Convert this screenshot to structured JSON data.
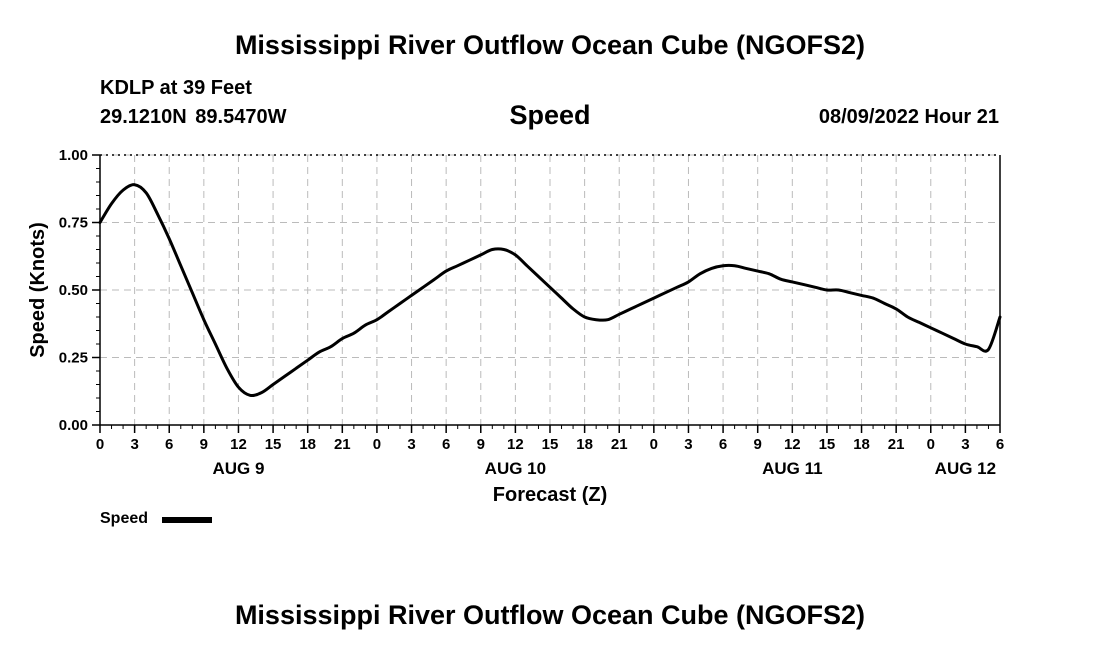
{
  "header": {
    "title": "Mississippi River Outflow Ocean Cube (NGOFS2)",
    "station": "KDLP at 39 Feet",
    "coords": "29.1210N  89.5470W",
    "subtitle": "Speed",
    "datetime": "08/09/2022 Hour 21"
  },
  "footer": {
    "title": "Mississippi River Outflow Ocean Cube (NGOFS2)"
  },
  "legend": {
    "label": "Speed",
    "color": "#000000"
  },
  "chart_data": {
    "type": "line",
    "title": "Speed",
    "xlabel": "Forecast (Z)",
    "ylabel": "Speed (Knots)",
    "xlim": [
      0,
      78
    ],
    "ylim": [
      0,
      1
    ],
    "grid": true,
    "yticks": [
      0,
      0.25,
      0.5,
      0.75,
      1.0
    ],
    "ytick_labels": [
      "0.00",
      "0.25",
      "0.50",
      "0.75",
      "1.00"
    ],
    "xticks": [
      0,
      3,
      6,
      9,
      12,
      15,
      18,
      21,
      24,
      27,
      30,
      33,
      36,
      39,
      42,
      45,
      48,
      51,
      54,
      57,
      60,
      63,
      66,
      69,
      72,
      75,
      78
    ],
    "xtick_labels": [
      "0",
      "3",
      "6",
      "9",
      "12",
      "15",
      "18",
      "21",
      "0",
      "3",
      "6",
      "9",
      "12",
      "15",
      "18",
      "21",
      "0",
      "3",
      "6",
      "9",
      "12",
      "15",
      "18",
      "21",
      "0",
      "3",
      "6"
    ],
    "date_labels": [
      {
        "x": 12,
        "label": "AUG 9"
      },
      {
        "x": 36,
        "label": "AUG 10"
      },
      {
        "x": 60,
        "label": "AUG 11"
      },
      {
        "x": 75,
        "label": "AUG 12"
      }
    ],
    "series": [
      {
        "name": "Speed",
        "color": "#000000",
        "x": [
          0,
          1,
          2,
          3,
          4,
          5,
          6,
          7,
          8,
          9,
          10,
          11,
          12,
          13,
          14,
          15,
          16,
          17,
          18,
          19,
          20,
          21,
          22,
          23,
          24,
          25,
          26,
          27,
          28,
          29,
          30,
          31,
          32,
          33,
          34,
          35,
          36,
          37,
          38,
          39,
          40,
          41,
          42,
          43,
          44,
          45,
          46,
          47,
          48,
          49,
          50,
          51,
          52,
          53,
          54,
          55,
          56,
          57,
          58,
          59,
          60,
          61,
          62,
          63,
          64,
          65,
          66,
          67,
          68,
          69,
          70,
          71,
          72,
          73,
          74,
          75,
          76,
          77,
          78
        ],
        "values": [
          0.75,
          0.82,
          0.87,
          0.89,
          0.86,
          0.78,
          0.69,
          0.59,
          0.49,
          0.39,
          0.3,
          0.21,
          0.14,
          0.11,
          0.12,
          0.15,
          0.18,
          0.21,
          0.24,
          0.27,
          0.29,
          0.32,
          0.34,
          0.37,
          0.39,
          0.42,
          0.45,
          0.48,
          0.51,
          0.54,
          0.57,
          0.59,
          0.61,
          0.63,
          0.65,
          0.65,
          0.63,
          0.59,
          0.55,
          0.51,
          0.47,
          0.43,
          0.4,
          0.39,
          0.39,
          0.41,
          0.43,
          0.45,
          0.47,
          0.49,
          0.51,
          0.53,
          0.56,
          0.58,
          0.59,
          0.59,
          0.58,
          0.57,
          0.56,
          0.54,
          0.53,
          0.52,
          0.51,
          0.5,
          0.5,
          0.49,
          0.48,
          0.47,
          0.45,
          0.43,
          0.4,
          0.38,
          0.36,
          0.34,
          0.32,
          0.3,
          0.29,
          0.28,
          0.4
        ]
      }
    ]
  }
}
